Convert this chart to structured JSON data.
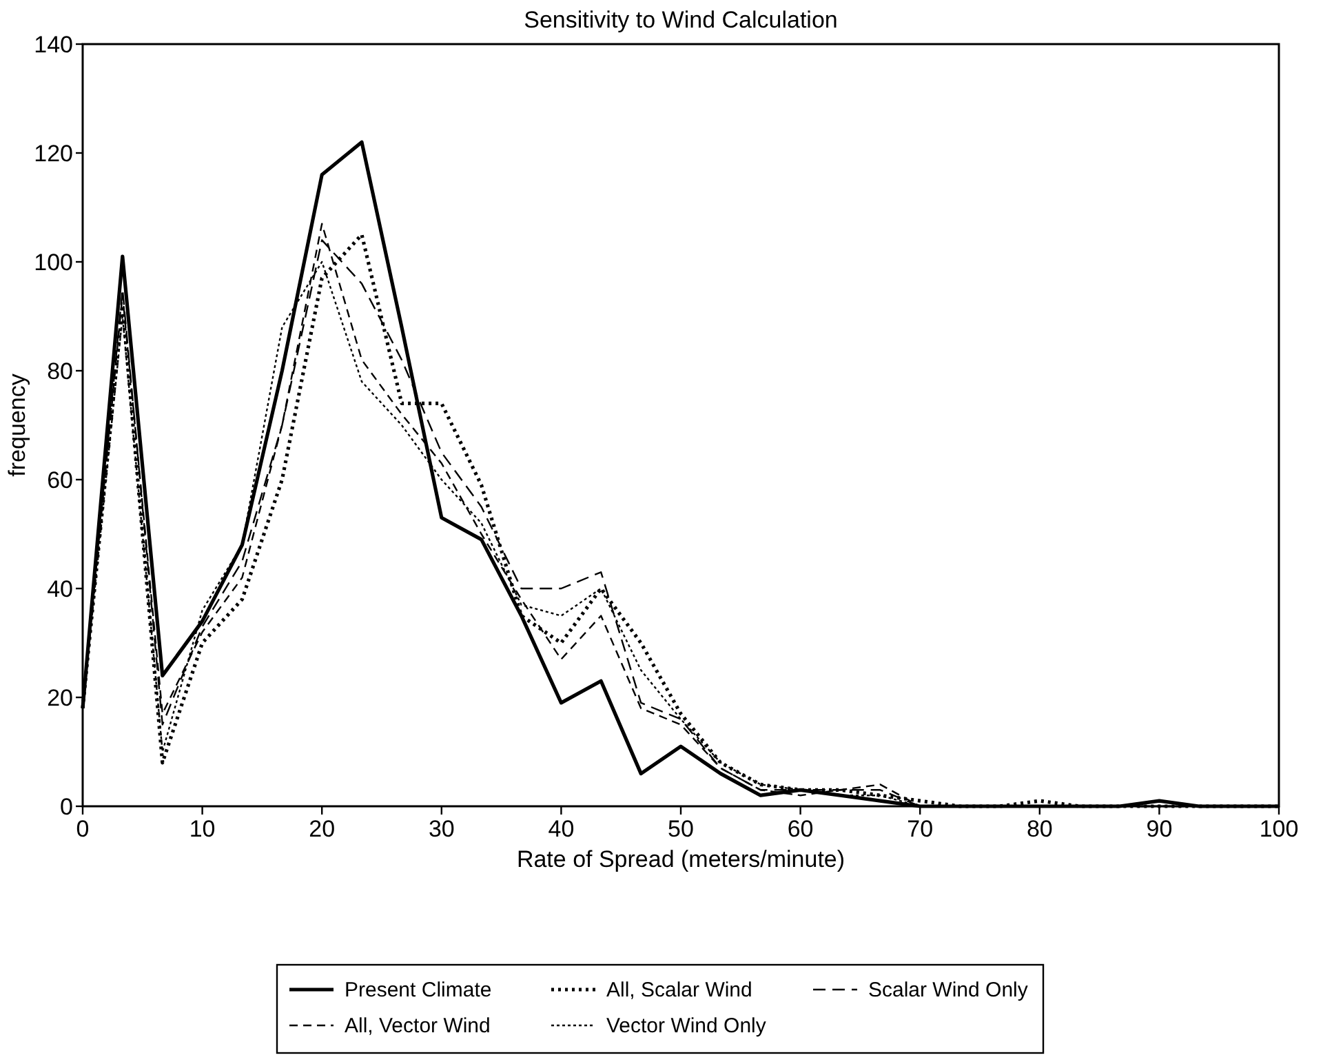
{
  "chart_data": {
    "type": "line",
    "title": "Sensitivity to Wind Calculation",
    "xlabel": "Rate of Spread (meters/minute)",
    "ylabel": "frequency",
    "x": [
      0,
      3.33,
      6.67,
      10,
      13.33,
      16.67,
      20,
      23.33,
      26.67,
      30,
      33.33,
      36.67,
      40,
      43.33,
      46.67,
      50,
      53.33,
      56.67,
      60,
      63.33,
      66.67,
      70,
      73.33,
      76.67,
      80,
      83.33,
      86.67,
      90,
      93.33,
      96.67,
      100
    ],
    "series": [
      {
        "name": "Present Climate",
        "color": "#000000",
        "line_style": "solid",
        "values": [
          18,
          101,
          24,
          34,
          48,
          80,
          116,
          122,
          88,
          53,
          49,
          35,
          19,
          23,
          6,
          11,
          6,
          2,
          3,
          2,
          1,
          0,
          0,
          0,
          0,
          0,
          0,
          1,
          0,
          0,
          0
        ]
      },
      {
        "name": "All, Scalar Wind",
        "color": "#000000",
        "line_style": "dotted",
        "values": [
          18,
          92,
          8,
          30,
          38,
          60,
          97,
          105,
          74,
          74,
          59,
          35,
          30,
          40,
          30,
          17,
          8,
          4,
          3,
          3,
          2,
          1,
          0,
          0,
          1,
          0,
          0,
          0,
          0,
          0,
          0
        ]
      },
      {
        "name": "Scalar Wind Only",
        "color": "#000000",
        "line_style": "dashed",
        "values": [
          18,
          95,
          15,
          33,
          45,
          70,
          104,
          96,
          82,
          65,
          55,
          40,
          40,
          43,
          19,
          16,
          7,
          3,
          3,
          3,
          3,
          0,
          0,
          0,
          0,
          0,
          0,
          0,
          0,
          0,
          0
        ]
      },
      {
        "name": "All, Vector Wind",
        "color": "#000000",
        "line_style": "dashed",
        "values": [
          18,
          94,
          17,
          32,
          42,
          70,
          107,
          82,
          72,
          63,
          50,
          38,
          27,
          35,
          18,
          15,
          7,
          3,
          2,
          3,
          4,
          0,
          0,
          0,
          0,
          0,
          0,
          0,
          0,
          0,
          0
        ]
      },
      {
        "name": "Vector Wind Only",
        "color": "#000000",
        "line_style": "dotted",
        "values": [
          18,
          90,
          10,
          36,
          48,
          88,
          100,
          78,
          70,
          60,
          52,
          37,
          35,
          40,
          25,
          16,
          8,
          4,
          3,
          2,
          2,
          0,
          0,
          0,
          0,
          0,
          0,
          0,
          0,
          0,
          0
        ]
      }
    ],
    "xlim": [
      0,
      100
    ],
    "xticks": [
      0,
      10,
      20,
      30,
      40,
      50,
      60,
      70,
      80,
      90,
      100
    ],
    "ylim": [
      0,
      140
    ],
    "yticks": [
      0,
      20,
      40,
      60,
      80,
      100,
      120,
      140
    ],
    "grid": false,
    "legend": "bottom"
  }
}
